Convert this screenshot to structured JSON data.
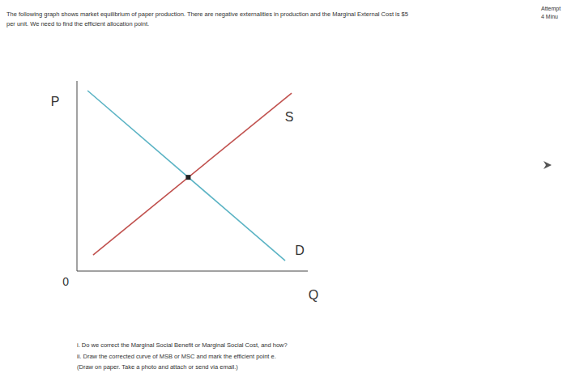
{
  "header": {
    "lines": [
      "The following graph shows market equilibrium of paper production. There are negative externalities in production and the Marginal External Cost is $5",
      "per unit. We need to find the efficient allocation point."
    ]
  },
  "corner": [
    "Attempt",
    "4 Minu"
  ],
  "chart_data": {
    "type": "line",
    "x_label": "Q",
    "y_label": "P",
    "xlim": [
      0,
      10
    ],
    "ylim": [
      0,
      10
    ],
    "xticks": [],
    "yticks": [
      0
    ],
    "tick_labels": "y",
    "grid": false,
    "series": [
      {
        "name": "S",
        "color": "#c0504d",
        "x": [
          0.7,
          9.3
        ],
        "values": [
          0.85,
          9.36
        ]
      },
      {
        "name": "D",
        "color": "#5bb3c4",
        "x": [
          0.46,
          9.02
        ],
        "values": [
          9.49,
          0.55
        ]
      }
    ],
    "equilibrium": {
      "x": 4.82,
      "y": 4.93,
      "color": "#222222",
      "marker": "square"
    }
  },
  "questions": [
    "i. Do we correct the Marginal Social Benefit or Marginal Social Cost, and how?",
    "ii. Draw the corrected curve of MSB or MSC and mark the efficient point e.",
    "(Draw on paper. Take a photo and attach or send via email.)"
  ]
}
